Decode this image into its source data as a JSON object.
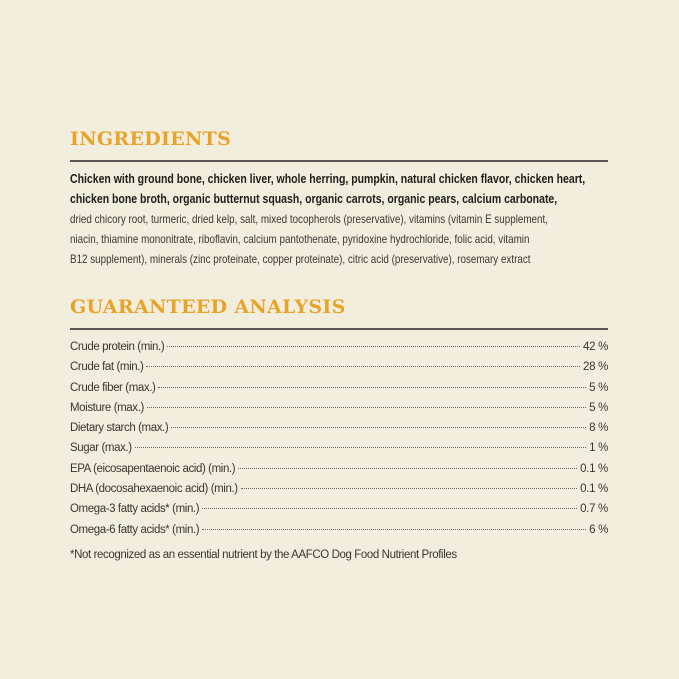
{
  "ingredients": {
    "title": "INGREDIENTS",
    "lines_bold": [
      "Chicken with ground bone, chicken liver, whole herring, pumpkin, natural chicken flavor, chicken heart,",
      "chicken bone broth, organic butternut squash, organic carrots, organic pears, calcium carbonate,"
    ],
    "lines_regular": [
      "dried chicory root, turmeric, dried kelp, salt, mixed tocopherols (preservative), vitamins (vitamin E supplement,",
      "niacin, thiamine mononitrate, riboflavin, calcium pantothenate, pyridoxine hydrochloride, folic acid, vitamin",
      "B12 supplement), minerals (zinc proteinate, copper proteinate), citric acid (preservative), rosemary extract"
    ]
  },
  "analysis": {
    "title": "GUARANTEED ANALYSIS",
    "rows": [
      {
        "label": "Crude protein (min.)",
        "value": "42 %"
      },
      {
        "label": "Crude fat (min.)",
        "value": "28 %"
      },
      {
        "label": "Crude fiber (max.)",
        "value": "5 %"
      },
      {
        "label": "Moisture (max.)",
        "value": "5 %"
      },
      {
        "label": "Dietary starch (max.)",
        "value": "8 %"
      },
      {
        "label": "Sugar (max.)",
        "value": "1 %"
      },
      {
        "label": "EPA (eicosapentaenoic acid) (min.)",
        "value": "0.1 %"
      },
      {
        "label": "DHA (docosahexaenoic acid) (min.)",
        "value": "0.1 %"
      },
      {
        "label": "Omega-3 fatty acids* (min.)",
        "value": "0.7 %"
      },
      {
        "label": "Omega-6 fatty acids* (min.)",
        "value": "6 %"
      }
    ],
    "footnote": "*Not recognized as an essential nutrient by the AAFCO Dog Food Nutrient Profiles"
  },
  "colors": {
    "heading": "#e8a32a",
    "background": "#f2eedd",
    "text": "#2a2623"
  }
}
